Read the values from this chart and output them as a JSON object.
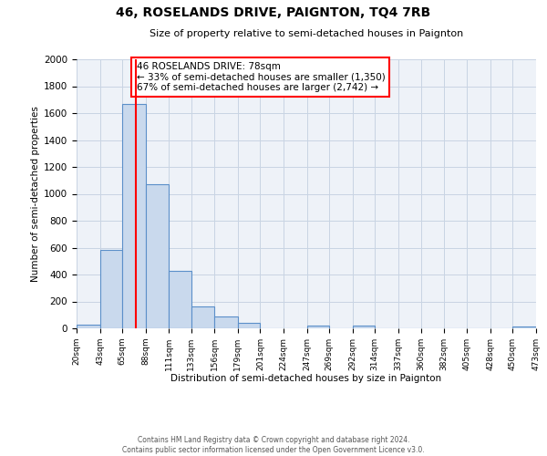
{
  "title": "46, ROSELANDS DRIVE, PAIGNTON, TQ4 7RB",
  "subtitle": "Size of property relative to semi-detached houses in Paignton",
  "xlabel": "Distribution of semi-detached houses by size in Paignton",
  "ylabel": "Number of semi-detached properties",
  "footer_line1": "Contains HM Land Registry data © Crown copyright and database right 2024.",
  "footer_line2": "Contains public sector information licensed under the Open Government Licence v3.0.",
  "annotation_title": "46 ROSELANDS DRIVE: 78sqm",
  "annotation_line1": "← 33% of semi-detached houses are smaller (1,350)",
  "annotation_line2": "67% of semi-detached houses are larger (2,742) →",
  "bar_color": "#c9d9ed",
  "bar_edge_color": "#5b8fc9",
  "red_line_x": 78,
  "bin_edges": [
    20,
    43,
    65,
    88,
    111,
    133,
    156,
    179,
    201,
    224,
    247,
    269,
    292,
    314,
    337,
    360,
    382,
    405,
    428,
    450,
    473
  ],
  "bin_counts": [
    30,
    580,
    1670,
    1070,
    430,
    160,
    90,
    40,
    0,
    0,
    20,
    0,
    20,
    0,
    0,
    0,
    0,
    0,
    0,
    15
  ],
  "ylim": [
    0,
    2000
  ],
  "yticks": [
    0,
    200,
    400,
    600,
    800,
    1000,
    1200,
    1400,
    1600,
    1800,
    2000
  ],
  "tick_labels": [
    "20sqm",
    "43sqm",
    "65sqm",
    "88sqm",
    "111sqm",
    "133sqm",
    "156sqm",
    "179sqm",
    "201sqm",
    "224sqm",
    "247sqm",
    "269sqm",
    "292sqm",
    "314sqm",
    "337sqm",
    "360sqm",
    "382sqm",
    "405sqm",
    "428sqm",
    "450sqm",
    "473sqm"
  ],
  "background_color": "#ffffff",
  "grid_color": "#c8d4e3"
}
